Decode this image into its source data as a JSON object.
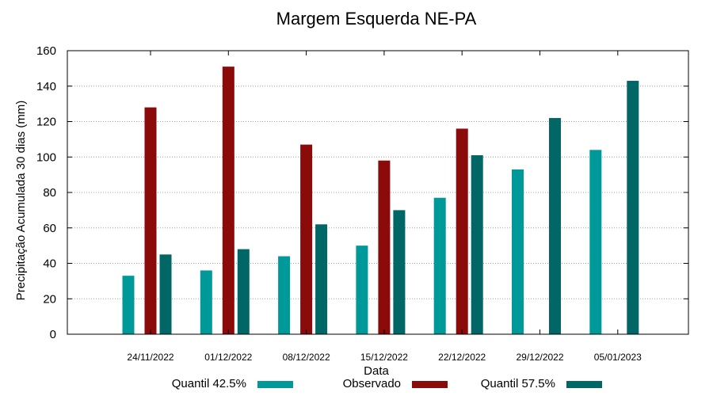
{
  "chart_data": {
    "type": "bar",
    "title": "Margem Esquerda NE-PA",
    "xlabel": "Data",
    "ylabel": "Precipitação Acumulada 30 dias (mm)",
    "ylim": [
      0,
      160
    ],
    "yticks": [
      0,
      20,
      40,
      60,
      80,
      100,
      120,
      140,
      160
    ],
    "grid": true,
    "legend_position": "bottom",
    "categories": [
      "24/11/2022",
      "01/12/2022",
      "08/12/2022",
      "15/12/2022",
      "22/12/2022",
      "29/12/2022",
      "05/01/2023"
    ],
    "series": [
      {
        "name": "Quantil 42.5%",
        "color": "#009999",
        "values": [
          33,
          36,
          44,
          50,
          77,
          93,
          104
        ]
      },
      {
        "name": "Observado",
        "color": "#8b0a0a",
        "values": [
          128,
          151,
          107,
          98,
          116,
          null,
          null
        ]
      },
      {
        "name": "Quantil 57.5%",
        "color": "#006666",
        "values": [
          45,
          48,
          62,
          70,
          101,
          122,
          143
        ]
      }
    ]
  }
}
